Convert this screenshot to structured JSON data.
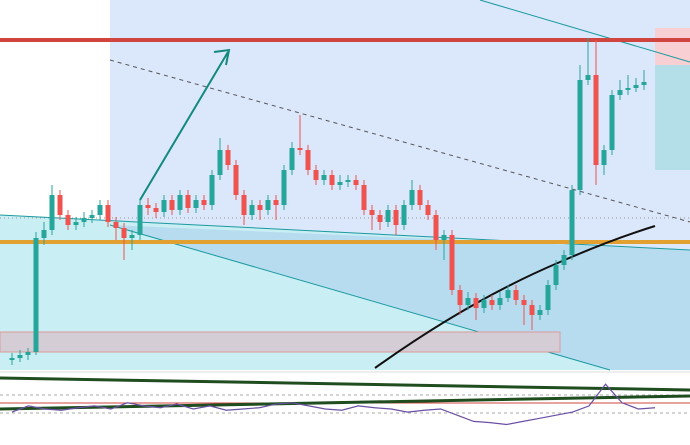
{
  "chart_data": [
    {
      "type": "candlestick",
      "up_color": "#26a69a",
      "down_color": "#ef5350",
      "ylim": [
        0,
        370
      ],
      "open": [
        10,
        12,
        15,
        18,
        132,
        140,
        175,
        155,
        145,
        148,
        152,
        155,
        165,
        148,
        142,
        132,
        135,
        165,
        162,
        158,
        170,
        160,
        175,
        162,
        170,
        165,
        195,
        220,
        205,
        175,
        155,
        165,
        160,
        170,
        165,
        200,
        222,
        220,
        200,
        190,
        195,
        185,
        188,
        190,
        185,
        160,
        155,
        148,
        160,
        145,
        165,
        180,
        165,
        155,
        130,
        135,
        80,
        65,
        72,
        62,
        70,
        65,
        72,
        80,
        70,
        65,
        55,
        60,
        85,
        105,
        115,
        180,
        290,
        295,
        205,
        220,
        275,
        280,
        282,
        285
      ],
      "high": [
        17,
        20,
        22,
        138,
        148,
        185,
        180,
        160,
        153,
        158,
        160,
        170,
        170,
        153,
        147,
        140,
        170,
        172,
        167,
        175,
        175,
        180,
        180,
        175,
        175,
        200,
        232,
        225,
        210,
        180,
        170,
        170,
        175,
        175,
        205,
        228,
        255,
        225,
        205,
        200,
        200,
        195,
        195,
        195,
        190,
        165,
        160,
        165,
        165,
        170,
        190,
        185,
        170,
        160,
        140,
        140,
        85,
        78,
        77,
        75,
        75,
        78,
        85,
        85,
        75,
        70,
        65,
        90,
        110,
        120,
        185,
        305,
        332,
        330,
        225,
        280,
        290,
        295,
        292,
        300
      ],
      "low": [
        5,
        8,
        10,
        15,
        125,
        135,
        150,
        140,
        140,
        143,
        147,
        150,
        143,
        130,
        110,
        120,
        130,
        155,
        152,
        153,
        155,
        155,
        157,
        157,
        160,
        160,
        190,
        200,
        170,
        145,
        150,
        150,
        155,
        150,
        160,
        195,
        215,
        195,
        185,
        185,
        180,
        180,
        183,
        180,
        155,
        140,
        140,
        143,
        135,
        140,
        160,
        160,
        150,
        120,
        110,
        75,
        55,
        60,
        50,
        57,
        60,
        60,
        68,
        65,
        45,
        40,
        50,
        55,
        80,
        100,
        110,
        175,
        285,
        185,
        195,
        215,
        270,
        275,
        278,
        280
      ],
      "close": [
        12,
        15,
        18,
        132,
        140,
        175,
        155,
        145,
        148,
        152,
        155,
        165,
        148,
        142,
        132,
        135,
        165,
        162,
        158,
        170,
        160,
        175,
        162,
        170,
        165,
        195,
        220,
        205,
        175,
        155,
        165,
        160,
        170,
        165,
        200,
        222,
        220,
        200,
        190,
        195,
        185,
        188,
        190,
        185,
        160,
        155,
        148,
        160,
        145,
        165,
        180,
        165,
        155,
        130,
        135,
        80,
        65,
        72,
        62,
        70,
        65,
        72,
        80,
        70,
        65,
        55,
        60,
        85,
        105,
        115,
        180,
        290,
        295,
        205,
        220,
        275,
        280,
        282,
        285,
        288
      ]
    },
    {
      "type": "line",
      "color": "#6a4fa3",
      "ylim": [
        0,
        100
      ],
      "values": [
        45,
        55,
        50,
        48,
        52,
        55,
        50,
        60,
        55,
        52,
        58,
        50,
        55,
        48,
        50,
        52,
        58,
        60,
        55,
        50,
        48,
        55,
        52,
        50,
        45,
        48,
        50,
        40,
        30,
        28,
        25,
        30,
        35,
        40,
        45,
        55,
        90,
        60,
        50,
        52
      ]
    }
  ]
}
